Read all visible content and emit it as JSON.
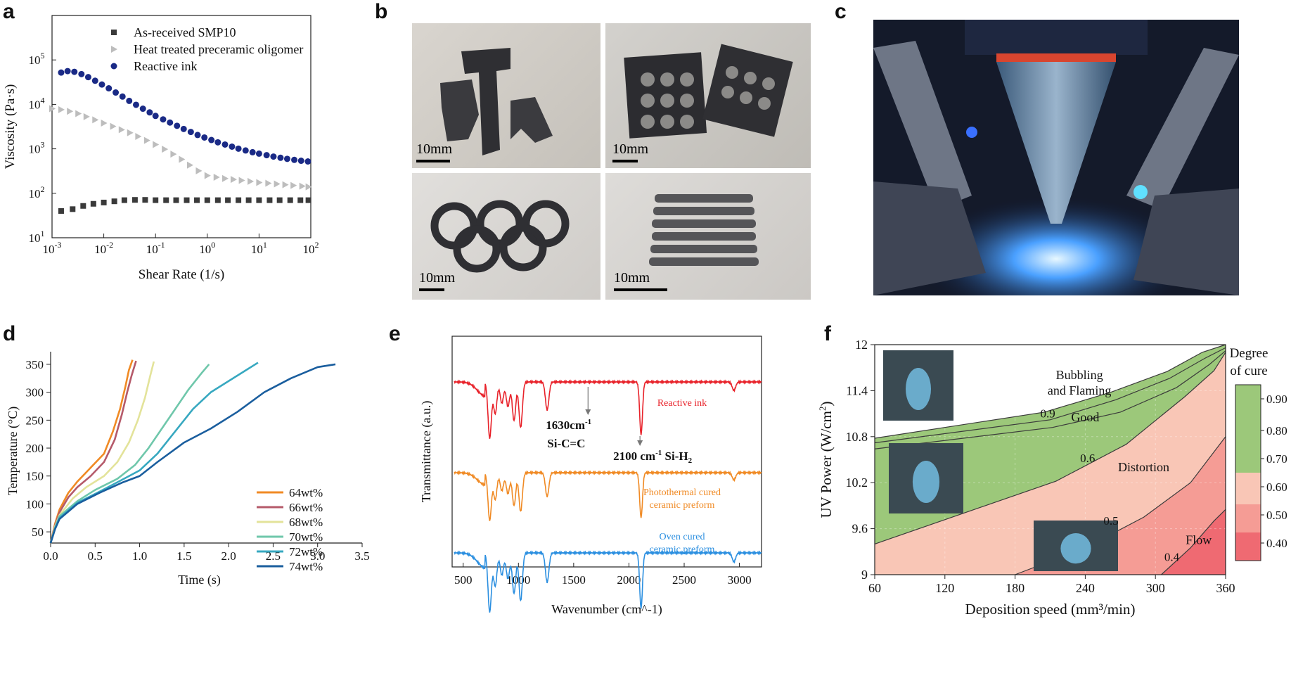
{
  "panels": {
    "a": {
      "letter": "a"
    },
    "b": {
      "letter": "b",
      "scale_labels": [
        "10mm",
        "10mm",
        "10mm",
        "10mm"
      ]
    },
    "c": {
      "letter": "c"
    },
    "d": {
      "letter": "d"
    },
    "e": {
      "letter": "e"
    },
    "f": {
      "letter": "f"
    }
  },
  "chart_data": [
    {
      "panel": "a",
      "type": "scatter",
      "xlabel": "Shear Rate (1/s)",
      "ylabel": "Viscosity (Pa·s)",
      "xscale": "log",
      "yscale": "log",
      "xlim": [
        0.001,
        100
      ],
      "ylim": [
        10,
        1000000
      ],
      "xticks": [
        0.001,
        0.01,
        0.1,
        1,
        10,
        100
      ],
      "xtick_labels": [
        [
          "10",
          "-3"
        ],
        [
          "10",
          "-2"
        ],
        [
          "10",
          "-1"
        ],
        [
          "10",
          "0"
        ],
        [
          "10",
          "1"
        ],
        [
          "10",
          "2"
        ]
      ],
      "yticks": [
        10,
        100,
        1000,
        10000,
        100000
      ],
      "ytick_labels": [
        [
          "10",
          "1"
        ],
        [
          "10",
          "2"
        ],
        [
          "10",
          "3"
        ],
        [
          "10",
          "4"
        ],
        [
          "10",
          "5"
        ]
      ],
      "legend_position": "top-center",
      "series": [
        {
          "name": "As-received SMP10",
          "marker": "square",
          "color": "#3a3a3a",
          "x": [
            0.0015,
            0.0025,
            0.004,
            0.0063,
            0.01,
            0.016,
            0.025,
            0.04,
            0.063,
            0.1,
            0.16,
            0.25,
            0.4,
            0.63,
            1,
            1.6,
            2.5,
            4,
            6.3,
            10,
            16,
            25,
            40,
            63,
            90
          ],
          "y": [
            40,
            44,
            52,
            58,
            62,
            66,
            70,
            71,
            71,
            70,
            70,
            70,
            70,
            70,
            70,
            70,
            70,
            70,
            70,
            70,
            70,
            70,
            70,
            70,
            70
          ]
        },
        {
          "name": "Heat treated preceramic oligomer",
          "marker": "triangle",
          "color": "#bdbdbd",
          "x": [
            0.001,
            0.0015,
            0.0022,
            0.0032,
            0.0046,
            0.0068,
            0.01,
            0.015,
            0.022,
            0.032,
            0.046,
            0.068,
            0.1,
            0.15,
            0.22,
            0.32,
            0.46,
            0.68,
            1,
            1.5,
            2.2,
            3.2,
            4.6,
            6.8,
            10,
            15,
            22,
            32,
            46,
            68,
            90
          ],
          "y": [
            8000,
            7600,
            7000,
            6200,
            5300,
            4500,
            3800,
            3200,
            2700,
            2300,
            1900,
            1550,
            1250,
            980,
            760,
            580,
            430,
            320,
            250,
            230,
            215,
            205,
            195,
            185,
            175,
            168,
            162,
            156,
            150,
            145,
            140
          ]
        },
        {
          "name": "Reactive ink",
          "marker": "circle",
          "color": "#1a2a86",
          "x": [
            0.0015,
            0.002,
            0.0027,
            0.0037,
            0.005,
            0.0068,
            0.0092,
            0.0125,
            0.017,
            0.023,
            0.031,
            0.042,
            0.057,
            0.077,
            0.1,
            0.14,
            0.19,
            0.26,
            0.35,
            0.48,
            0.65,
            0.88,
            1.2,
            1.6,
            2.2,
            3,
            4,
            5.5,
            7.5,
            10,
            14,
            19,
            26,
            35,
            48,
            65,
            88
          ],
          "y": [
            52000,
            56000,
            54000,
            48000,
            41000,
            34000,
            28000,
            23000,
            18500,
            15000,
            12000,
            9800,
            8000,
            6600,
            5500,
            4600,
            3900,
            3300,
            2800,
            2400,
            2050,
            1800,
            1580,
            1400,
            1250,
            1120,
            1010,
            920,
            840,
            780,
            720,
            670,
            630,
            595,
            565,
            540,
            520
          ]
        }
      ]
    },
    {
      "panel": "d",
      "type": "line",
      "xlabel": "Time (s)",
      "ylabel": "Temperature (°C)",
      "xlim": [
        0,
        3.5
      ],
      "ylim": [
        30,
        360
      ],
      "xticks": [
        0.0,
        0.5,
        1.0,
        1.5,
        2.0,
        2.5,
        3.0,
        3.5
      ],
      "xtick_labels": [
        "0.0",
        "0.5",
        "1.0",
        "1.5",
        "2.0",
        "2.5",
        "3.0",
        "3.5"
      ],
      "yticks": [
        50,
        100,
        150,
        200,
        250,
        300,
        350
      ],
      "ytick_labels": [
        "50",
        "100",
        "150",
        "200",
        "250",
        "300",
        "350"
      ],
      "legend_position": "right-center",
      "series": [
        {
          "name": "64wt%",
          "color": "#f08a24",
          "x": [
            0.0,
            0.05,
            0.1,
            0.2,
            0.3,
            0.45,
            0.6,
            0.7,
            0.78,
            0.84,
            0.88,
            0.92
          ],
          "y": [
            30,
            65,
            90,
            120,
            140,
            165,
            190,
            230,
            270,
            310,
            340,
            358
          ]
        },
        {
          "name": "66wt%",
          "color": "#b55a6a",
          "x": [
            0.0,
            0.05,
            0.1,
            0.2,
            0.3,
            0.45,
            0.6,
            0.72,
            0.8,
            0.86,
            0.91,
            0.96
          ],
          "y": [
            30,
            62,
            85,
            112,
            130,
            150,
            175,
            215,
            260,
            300,
            330,
            356
          ]
        },
        {
          "name": "68wt%",
          "color": "#e3e39a",
          "x": [
            0.0,
            0.05,
            0.1,
            0.25,
            0.4,
            0.6,
            0.75,
            0.88,
            0.98,
            1.06,
            1.12,
            1.16
          ],
          "y": [
            30,
            60,
            80,
            110,
            130,
            150,
            175,
            210,
            250,
            290,
            330,
            355
          ]
        },
        {
          "name": "70wt%",
          "color": "#6fc7ab",
          "x": [
            0.0,
            0.05,
            0.1,
            0.3,
            0.5,
            0.75,
            0.95,
            1.1,
            1.25,
            1.4,
            1.55,
            1.7,
            1.78
          ],
          "y": [
            30,
            58,
            78,
            105,
            125,
            145,
            170,
            200,
            235,
            270,
            305,
            335,
            350
          ]
        },
        {
          "name": "72wt%",
          "color": "#37a8c0",
          "x": [
            0.0,
            0.05,
            0.1,
            0.3,
            0.55,
            0.8,
            1.0,
            1.2,
            1.4,
            1.6,
            1.8,
            2.0,
            2.2,
            2.33
          ],
          "y": [
            30,
            56,
            75,
            102,
            122,
            143,
            160,
            190,
            230,
            270,
            300,
            320,
            340,
            353
          ]
        },
        {
          "name": "74wt%",
          "color": "#1a5e9e",
          "x": [
            0.0,
            0.05,
            0.1,
            0.3,
            0.55,
            0.8,
            1.0,
            1.2,
            1.5,
            1.8,
            2.1,
            2.4,
            2.7,
            3.0,
            3.2
          ],
          "y": [
            30,
            55,
            73,
            100,
            120,
            138,
            150,
            175,
            210,
            235,
            265,
            300,
            325,
            345,
            350
          ]
        }
      ]
    },
    {
      "panel": "e",
      "type": "line",
      "xlabel": "Wavenumber (cm^-1)",
      "ylabel": "Transmittance (a.u.)",
      "xlim": [
        400,
        3200
      ],
      "xticks": [
        500,
        1000,
        1500,
        2000,
        2500,
        3000
      ],
      "xtick_labels": [
        "500",
        "1000",
        "1500",
        "2000",
        "2500",
        "3000"
      ],
      "annotations": [
        {
          "text": "1630cm",
          "sup": "-1",
          "line2": "Si-C=C",
          "x": 1630
        },
        {
          "text": "2100 cm",
          "sup": "-1",
          "tail": " Si-H",
          "sub": "2",
          "x": 2100
        }
      ],
      "series": [
        {
          "name": "Reactive ink",
          "color": "#e8222a"
        },
        {
          "name_lines": [
            "Photothermal cured",
            "ceramic preform"
          ],
          "color": "#f08a24"
        },
        {
          "name_lines": [
            "Oven cured",
            "ceramic preform"
          ],
          "color": "#2b8fe0"
        }
      ]
    },
    {
      "panel": "f",
      "type": "heatmap",
      "xlabel": "Deposition speed (mm³/min)",
      "ylabel_main": "UV Power (W/cm",
      "ylabel_sup": "2",
      "ylabel_tail": ")",
      "xlim": [
        60,
        360
      ],
      "ylim": [
        9,
        12
      ],
      "xticks": [
        60,
        120,
        180,
        240,
        300,
        360
      ],
      "xtick_labels": [
        "60",
        "120",
        "180",
        "240",
        "300",
        "360"
      ],
      "yticks": [
        9,
        9.6,
        10.2,
        10.8,
        11.4,
        12
      ],
      "ytick_labels": [
        "9",
        "9.6",
        "10.2",
        "10.8",
        "11.4",
        "12"
      ],
      "region_labels": [
        {
          "text": [
            "Bubbling",
            "and Flaming"
          ],
          "x": 235,
          "y": 11.55
        },
        {
          "text": [
            "Good"
          ],
          "x": 240,
          "y": 11.0
        },
        {
          "text": [
            "Distortion"
          ],
          "x": 290,
          "y": 10.35
        },
        {
          "text": [
            "Flow"
          ],
          "x": 337,
          "y": 9.4
        }
      ],
      "contour_labels": [
        {
          "text": "0.9",
          "x": 208,
          "y": 11.05,
          "level": 0.9
        },
        {
          "text": "0.6",
          "x": 242,
          "y": 10.47,
          "level": 0.6
        },
        {
          "text": "0.5",
          "x": 262,
          "y": 9.65,
          "level": 0.5
        },
        {
          "text": "0.4",
          "x": 314,
          "y": 9.18,
          "level": 0.4
        }
      ],
      "contours": [
        {
          "level": 0.9,
          "x": [
            60,
            205,
            262,
            310,
            340,
            360
          ],
          "y": [
            10.78,
            11.12,
            11.38,
            11.65,
            11.9,
            12.0
          ]
        },
        {
          "level": 0.8,
          "x": [
            60,
            210,
            266,
            312,
            342,
            360
          ],
          "y": [
            10.72,
            11.02,
            11.28,
            11.56,
            11.82,
            11.96
          ]
        },
        {
          "level": 0.7,
          "x": [
            60,
            212,
            270,
            318,
            346,
            360
          ],
          "y": [
            10.64,
            10.92,
            11.12,
            11.44,
            11.74,
            11.92
          ]
        },
        {
          "level": 0.6,
          "x": [
            60,
            215,
            275,
            325,
            350,
            360
          ],
          "y": [
            9.4,
            10.22,
            10.7,
            11.32,
            11.66,
            11.9
          ]
        },
        {
          "level": 0.5,
          "x": [
            180,
            240,
            290,
            330,
            360
          ],
          "y": [
            9.0,
            9.35,
            9.75,
            10.2,
            10.8
          ]
        },
        {
          "level": 0.4,
          "x": [
            305,
            330,
            350,
            360
          ],
          "y": [
            9.0,
            9.35,
            9.7,
            9.85
          ]
        }
      ],
      "colorbar": {
        "title": [
          "Degree",
          "of cure"
        ],
        "ticks": [
          "0.90",
          "0.80",
          "0.70",
          "0.60",
          "0.50",
          "0.40"
        ],
        "colors": {
          "green": "#9cc87a",
          "pink": "#f9c6b6",
          "salmon": "#f59c95",
          "red": "#ef6a72"
        }
      }
    }
  ]
}
